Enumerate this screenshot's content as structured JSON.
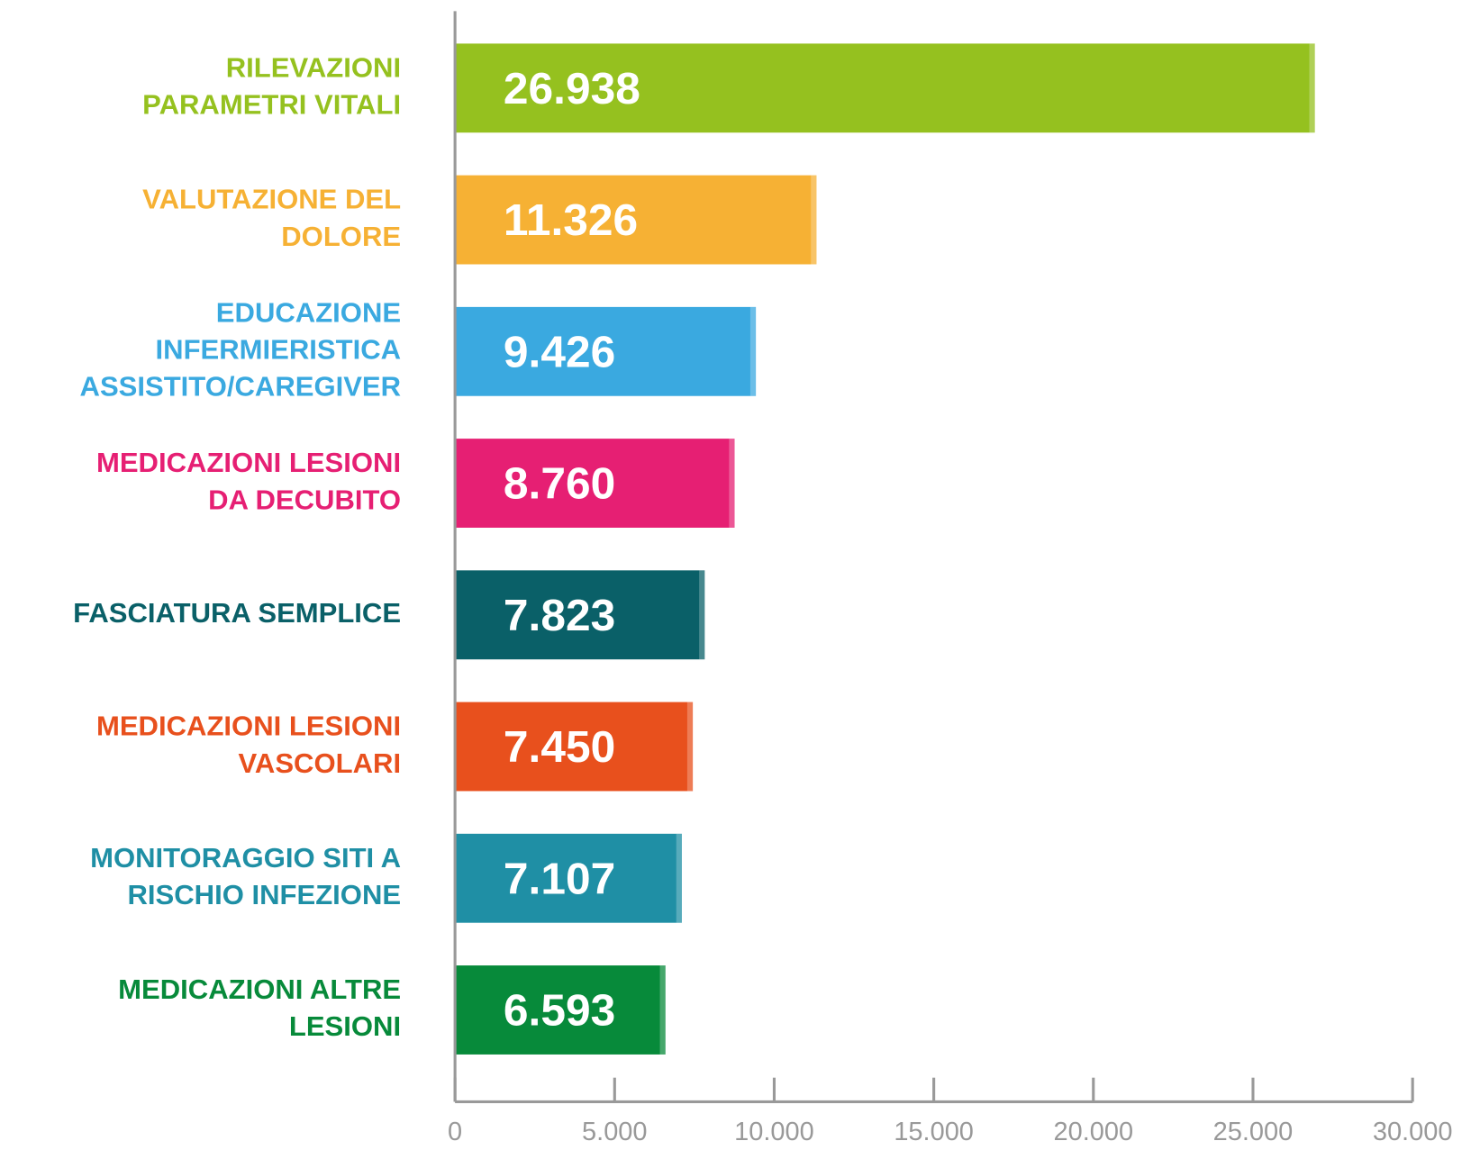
{
  "chart_data": {
    "type": "barh",
    "categories": [
      [
        "RILEVAZIONI",
        "PARAMETRI VITALI"
      ],
      [
        "VALUTAZIONE DEL",
        "DOLORE"
      ],
      [
        "EDUCAZIONE",
        "INFERMIERISTICA",
        "ASSISTITO/CAREGIVER"
      ],
      [
        "MEDICAZIONI LESIONI",
        "DA DECUBITO"
      ],
      [
        "FASCIATURA SEMPLICE"
      ],
      [
        "MEDICAZIONI LESIONI",
        "VASCOLARI"
      ],
      [
        "MONITORAGGIO SITI A",
        "RISCHIO INFEZIONE"
      ],
      [
        "MEDICAZIONI ALTRE",
        "LESIONI"
      ]
    ],
    "values": [
      26938,
      11326,
      9426,
      8760,
      7823,
      7450,
      7107,
      6593
    ],
    "value_labels": [
      "26.938",
      "11.326",
      "9.426",
      "8.760",
      "7.823",
      "7.450",
      "7.107",
      "6.593"
    ],
    "colors": [
      "#95c11f",
      "#f6b134",
      "#3aa9e0",
      "#e61f73",
      "#0a6068",
      "#e8501d",
      "#1f8fa5",
      "#078a3a"
    ],
    "xlim": [
      0,
      30000
    ],
    "xticks": [
      0,
      {
        "value": 5000,
        "label": "5.000"
      },
      {
        "value": 10000,
        "label": "10.000"
      },
      {
        "value": 15000,
        "label": "15.000"
      },
      {
        "value": 20000,
        "label": "20.000"
      },
      {
        "value": 25000,
        "label": "25.000"
      },
      {
        "value": 30000,
        "label": "30.000"
      }
    ]
  }
}
